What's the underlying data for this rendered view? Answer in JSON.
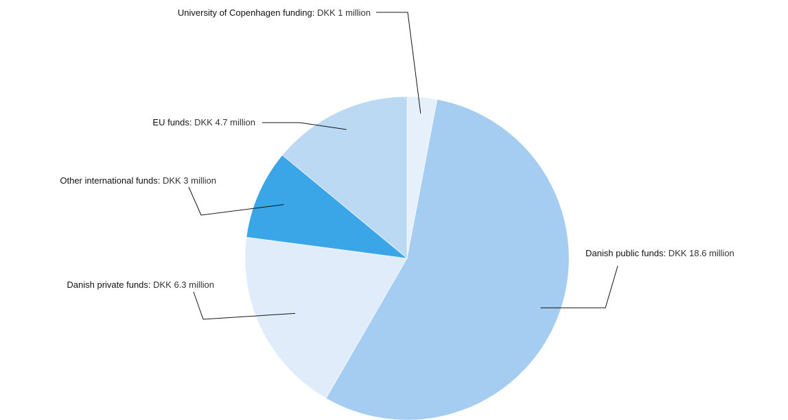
{
  "chart_data": {
    "type": "pie",
    "title": "",
    "unit": "DKK million",
    "slices": [
      {
        "name": "University of Copenhagen funding",
        "value": 1,
        "value_label": "DKK 1 million",
        "color": "#e6f0fb"
      },
      {
        "name": "Danish public funds",
        "value": 18.6,
        "value_label": "DKK 18.6 million",
        "color": "#a5cdf1"
      },
      {
        "name": "Danish private funds",
        "value": 6.3,
        "value_label": "DKK 6.3 million",
        "color": "#e0ecf9"
      },
      {
        "name": "Other international funds",
        "value": 3,
        "value_label": "DKK 3 million",
        "color": "#3aa6e8"
      },
      {
        "name": "EU funds",
        "value": 4.7,
        "value_label": "DKK 4.7 million",
        "color": "#bcd9f4"
      }
    ],
    "start_angle": "12 o'clock",
    "direction": "clockwise",
    "legend": "none"
  }
}
